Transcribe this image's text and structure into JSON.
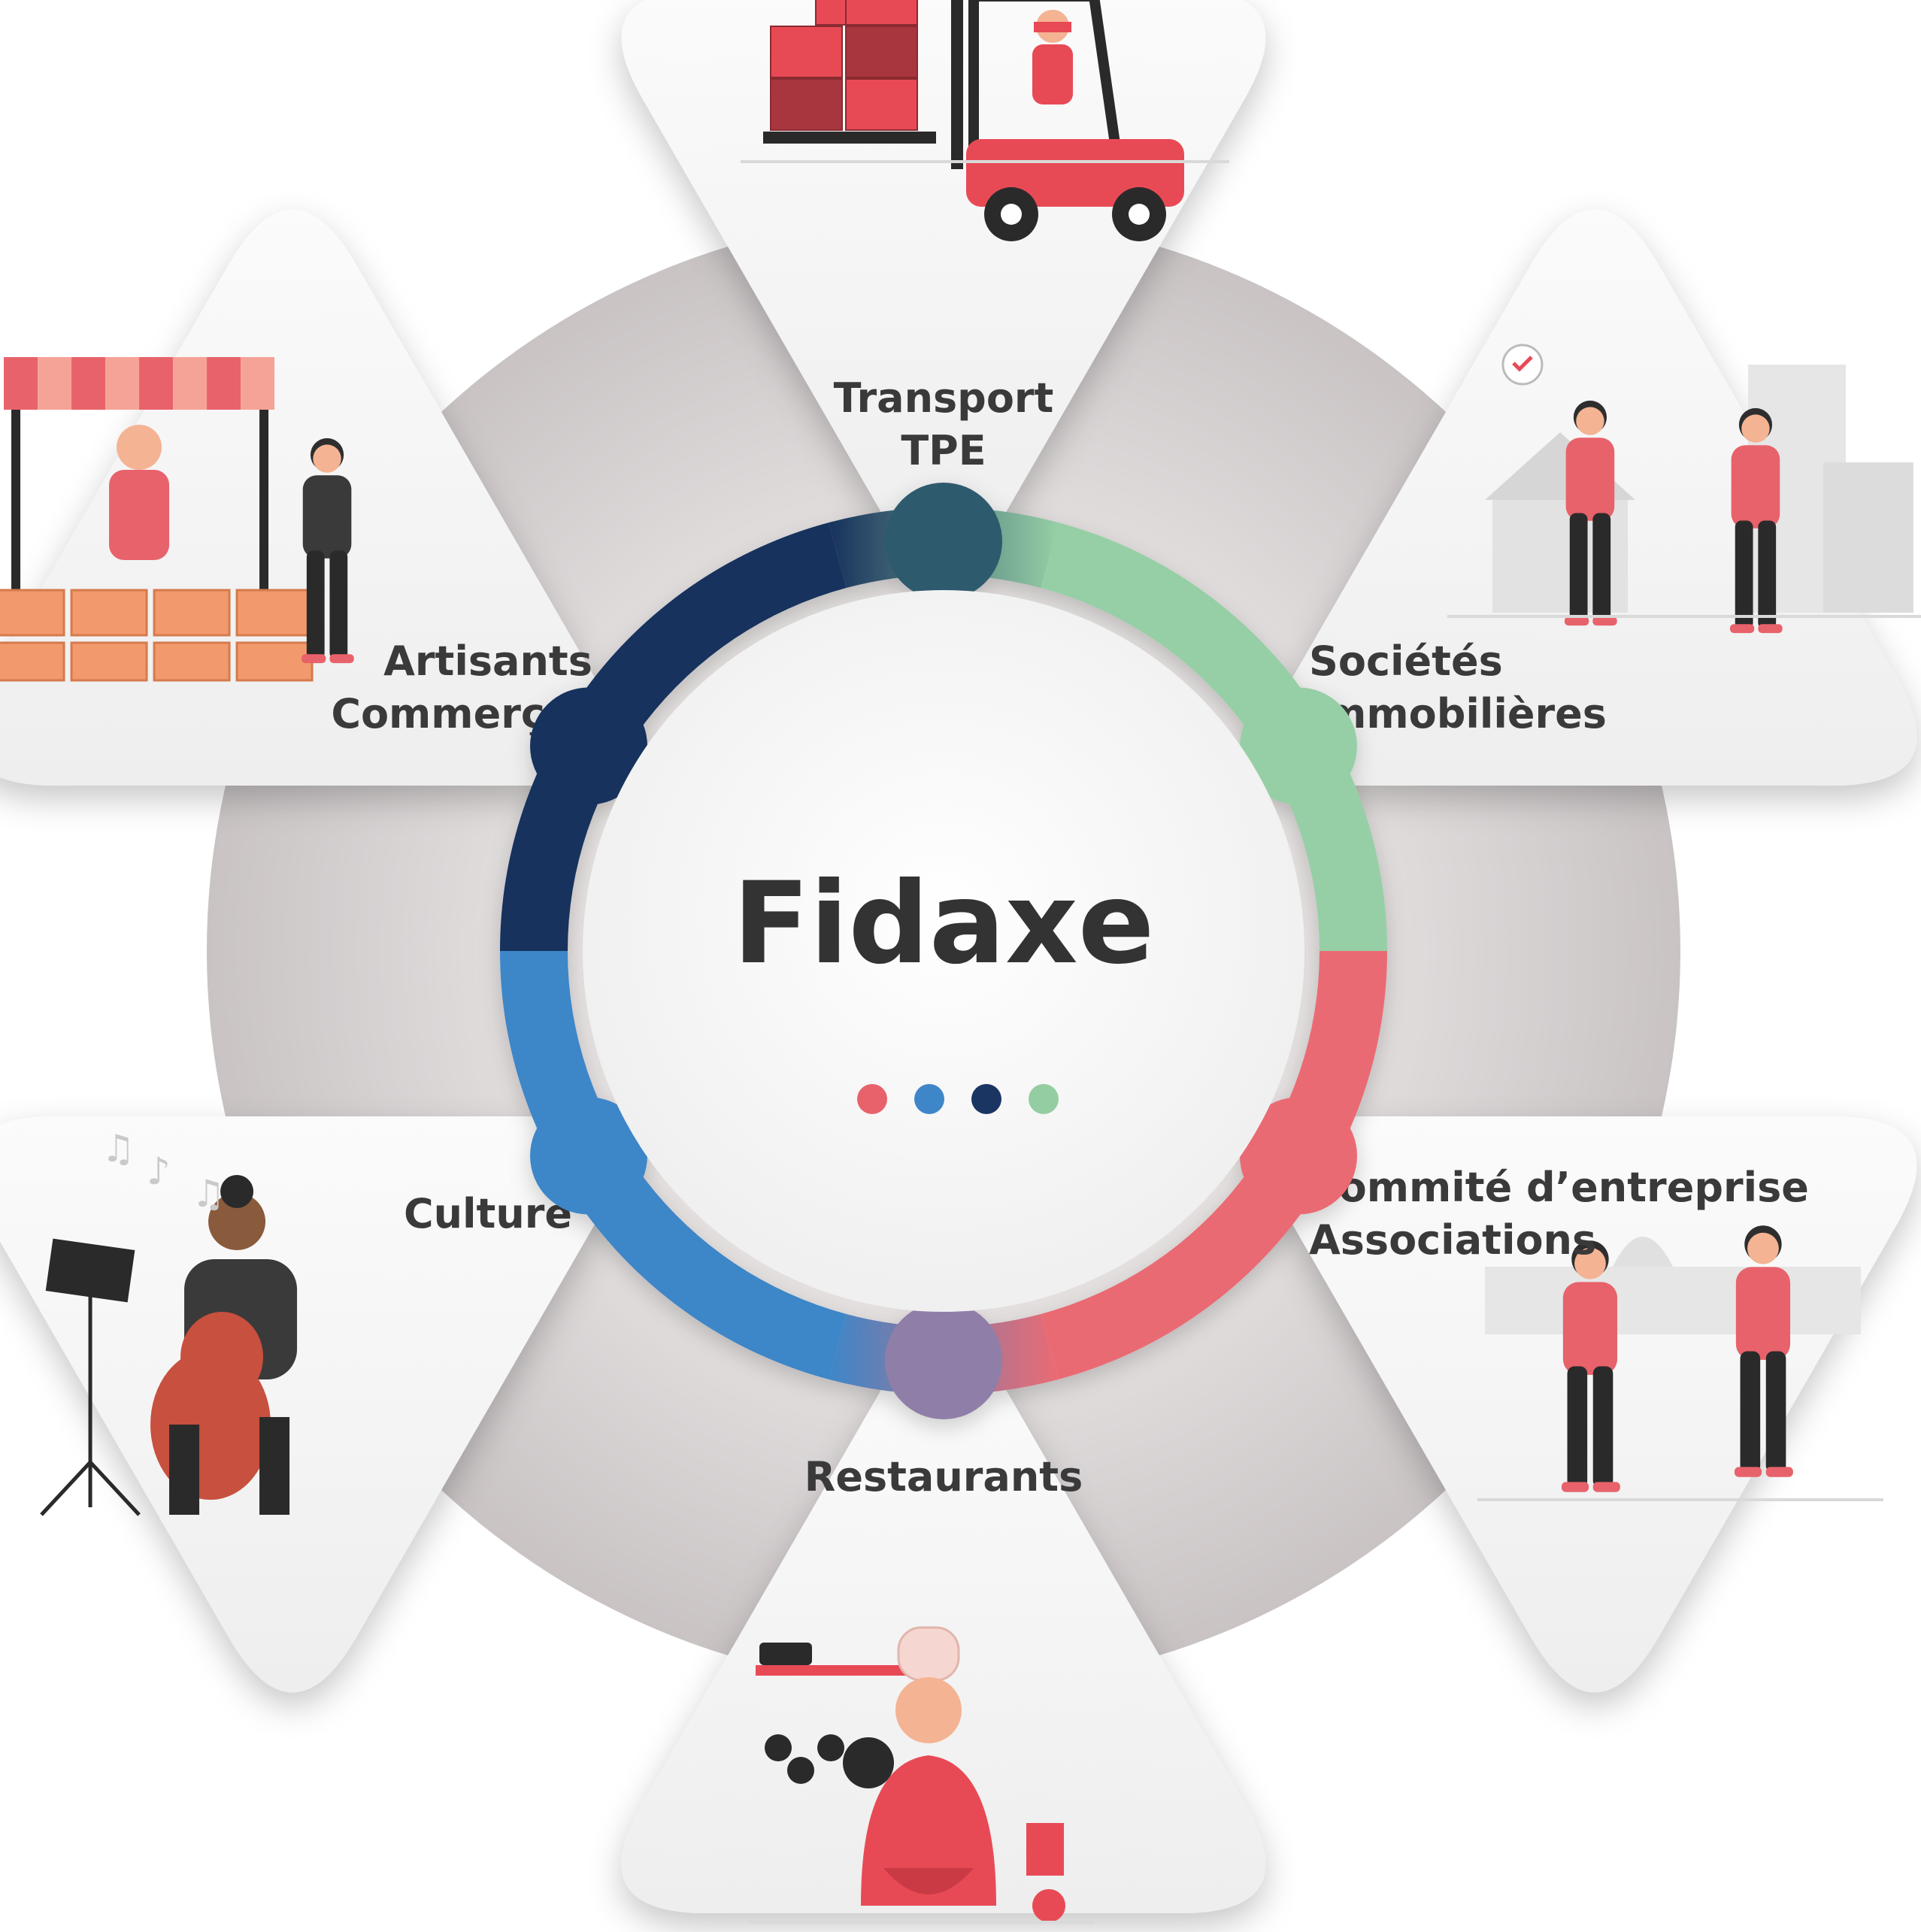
{
  "center": {
    "title": "Fidaxe",
    "dots": [
      "#e8626b",
      "#3f86c9",
      "#1b3563",
      "#95cda2"
    ]
  },
  "ring_colors": {
    "navy": "#17325d",
    "green": "#96cfa5",
    "coral": "#ea6b73",
    "blue": "#3e86c8"
  },
  "segments": [
    {
      "id": "transport",
      "lines": [
        "Transport",
        "TPE"
      ],
      "illustration": "forklift-icon"
    },
    {
      "id": "societes",
      "lines": [
        "Sociétés",
        "Immobilières"
      ],
      "illustration": "handshake-keys-icon"
    },
    {
      "id": "commite",
      "lines": [
        "Commité d’entreprise",
        "Associations"
      ],
      "illustration": "people-talking-icon"
    },
    {
      "id": "restaurants",
      "lines": [
        "Restaurants"
      ],
      "illustration": "chef-icon"
    },
    {
      "id": "culture",
      "lines": [
        "Culture"
      ],
      "illustration": "cellist-icon"
    },
    {
      "id": "artisans",
      "lines": [
        "Artisants",
        "Commerçants"
      ],
      "illustration": "market-stall-icon"
    }
  ]
}
